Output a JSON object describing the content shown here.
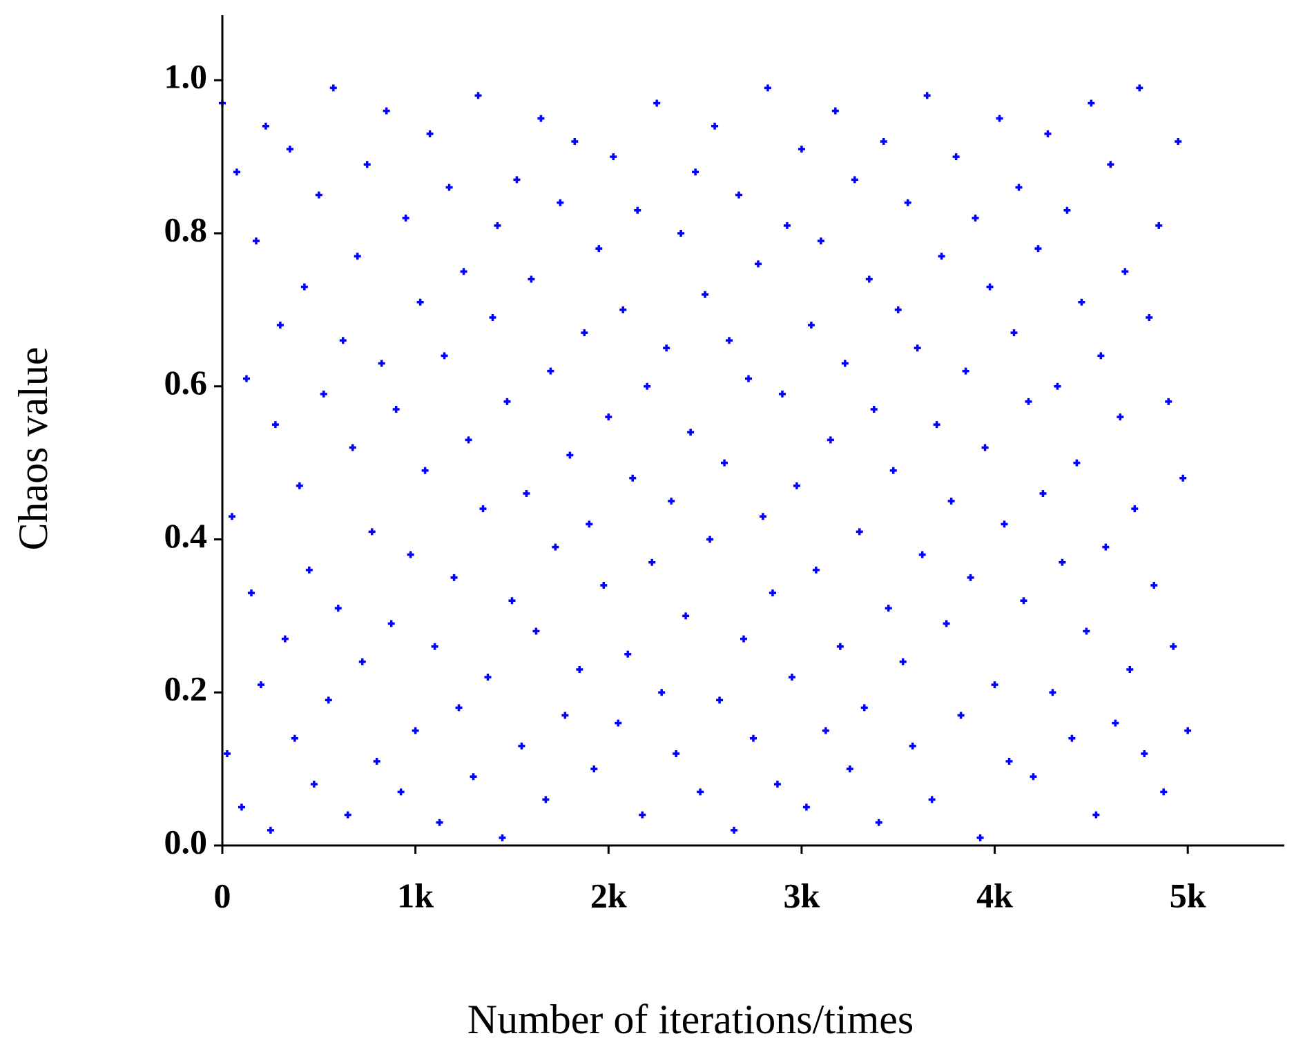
{
  "chart_data": {
    "type": "scatter",
    "x_label": "Number of iterations/times",
    "y_label": "Chaos value",
    "xlim": [
      0,
      5500
    ],
    "ylim": [
      0,
      1.085
    ],
    "xticks": [
      0,
      {
        "value": 1000,
        "label": "1k"
      },
      {
        "value": 2000,
        "label": "2k"
      },
      {
        "value": 3000,
        "label": "3k"
      },
      {
        "value": 4000,
        "label": "4k"
      },
      {
        "value": 5000,
        "label": "5k"
      }
    ],
    "yticks": [
      {
        "value": 0,
        "label": "0.0"
      },
      0.2,
      0.4,
      0.6,
      0.8,
      {
        "value": 1,
        "label": "1.0"
      }
    ],
    "color": "#0000ff",
    "x": [
      0,
      25,
      50,
      75,
      100,
      125,
      150,
      175,
      200,
      225,
      250,
      275,
      300,
      325,
      350,
      375,
      400,
      425,
      450,
      475,
      500,
      525,
      550,
      575,
      600,
      625,
      650,
      675,
      700,
      725,
      750,
      775,
      800,
      825,
      850,
      875,
      900,
      925,
      950,
      975,
      1000,
      1025,
      1050,
      1075,
      1100,
      1125,
      1150,
      1175,
      1200,
      1225,
      1250,
      1275,
      1300,
      1325,
      1350,
      1375,
      1400,
      1425,
      1450,
      1475,
      1500,
      1525,
      1550,
      1575,
      1600,
      1625,
      1650,
      1675,
      1700,
      1725,
      1750,
      1775,
      1800,
      1825,
      1850,
      1875,
      1900,
      1925,
      1950,
      1975,
      2000,
      2025,
      2050,
      2075,
      2100,
      2125,
      2150,
      2175,
      2200,
      2225,
      2250,
      2275,
      2300,
      2325,
      2350,
      2375,
      2400,
      2425,
      2450,
      2475,
      2500,
      2525,
      2550,
      2575,
      2600,
      2625,
      2650,
      2675,
      2700,
      2725,
      2750,
      2775,
      2800,
      2825,
      2850,
      2875,
      2900,
      2925,
      2950,
      2975,
      3000,
      3025,
      3050,
      3075,
      3100,
      3125,
      3150,
      3175,
      3200,
      3225,
      3250,
      3275,
      3300,
      3325,
      3350,
      3375,
      3400,
      3425,
      3450,
      3475,
      3500,
      3525,
      3550,
      3575,
      3600,
      3625,
      3650,
      3675,
      3700,
      3725,
      3750,
      3775,
      3800,
      3825,
      3850,
      3875,
      3900,
      3925,
      3950,
      3975,
      4000,
      4025,
      4050,
      4075,
      4100,
      4125,
      4150,
      4175,
      4200,
      4225,
      4250,
      4275,
      4300,
      4325,
      4350,
      4375,
      4400,
      4425,
      4450,
      4475,
      4500,
      4525,
      4550,
      4575,
      4600,
      4625,
      4650,
      4675,
      4700,
      4725,
      4750,
      4775,
      4800,
      4825,
      4850,
      4875,
      4900,
      4925,
      4950,
      4975,
      5000
    ],
    "y": [
      0.97,
      0.12,
      0.43,
      0.88,
      0.05,
      0.61,
      0.33,
      0.79,
      0.21,
      0.94,
      0.02,
      0.55,
      0.68,
      0.27,
      0.91,
      0.14,
      0.47,
      0.73,
      0.36,
      0.08,
      0.85,
      0.59,
      0.19,
      0.99,
      0.31,
      0.66,
      0.04,
      0.52,
      0.77,
      0.24,
      0.89,
      0.41,
      0.11,
      0.63,
      0.96,
      0.29,
      0.57,
      0.07,
      0.82,
      0.38,
      0.15,
      0.71,
      0.49,
      0.93,
      0.26,
      0.03,
      0.64,
      0.86,
      0.35,
      0.18,
      0.75,
      0.53,
      0.09,
      0.98,
      0.44,
      0.22,
      0.69,
      0.81,
      0.01,
      0.58,
      0.32,
      0.87,
      0.13,
      0.46,
      0.74,
      0.28,
      0.95,
      0.06,
      0.62,
      0.39,
      0.84,
      0.17,
      0.51,
      0.92,
      0.23,
      0.67,
      0.42,
      0.1,
      0.78,
      0.34,
      0.56,
      0.9,
      0.16,
      0.7,
      0.25,
      0.48,
      0.83,
      0.04,
      0.6,
      0.37,
      0.97,
      0.2,
      0.65,
      0.45,
      0.12,
      0.8,
      0.3,
      0.54,
      0.88,
      0.07,
      0.72,
      0.4,
      0.94,
      0.19,
      0.5,
      0.66,
      0.02,
      0.85,
      0.27,
      0.61,
      0.14,
      0.76,
      0.43,
      0.99,
      0.33,
      0.08,
      0.59,
      0.81,
      0.22,
      0.47,
      0.91,
      0.05,
      0.68,
      0.36,
      0.79,
      0.15,
      0.53,
      0.96,
      0.26,
      0.63,
      0.1,
      0.87,
      0.41,
      0.18,
      0.74,
      0.57,
      0.03,
      0.92,
      0.31,
      0.49,
      0.7,
      0.24,
      0.84,
      0.13,
      0.65,
      0.38,
      0.98,
      0.06,
      0.55,
      0.77,
      0.29,
      0.45,
      0.9,
      0.17,
      0.62,
      0.35,
      0.82,
      0.01,
      0.52,
      0.73,
      0.21,
      0.95,
      0.42,
      0.11,
      0.67,
      0.86,
      0.32,
      0.58,
      0.09,
      0.78,
      0.46,
      0.93,
      0.2,
      0.6,
      0.37,
      0.83,
      0.14,
      0.5,
      0.71,
      0.28,
      0.97,
      0.04,
      0.64,
      0.39,
      0.89,
      0.16,
      0.56,
      0.75,
      0.23,
      0.44,
      0.99,
      0.12,
      0.69,
      0.34,
      0.81,
      0.07,
      0.58,
      0.26,
      0.92,
      0.48,
      0.15
    ]
  }
}
